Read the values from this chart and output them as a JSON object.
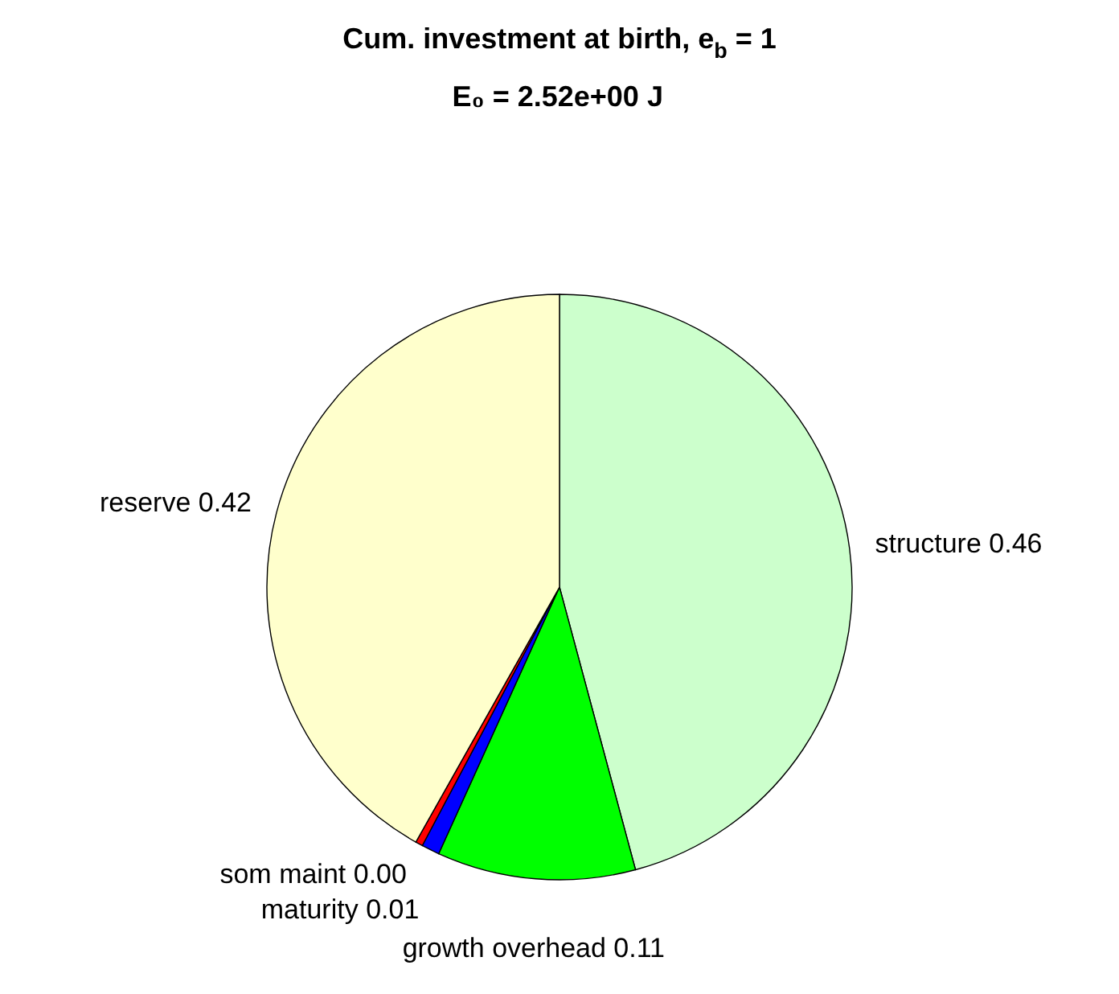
{
  "chart_data": {
    "type": "pie",
    "title": "Cum. investment at birth, e$_{b}$ = 1",
    "subtitle": "E₀ = 2.52e+00 J",
    "categories": [
      "structure",
      "growth overhead",
      "maturity",
      "som maint",
      "reserve"
    ],
    "values": [
      0.46,
      0.11,
      0.01,
      0.004,
      0.42
    ],
    "value_labels": [
      "0.46",
      "0.11",
      "0.01",
      "0.00",
      "0.42"
    ],
    "colors": [
      "#ccffcc",
      "#00ff00",
      "#0000ff",
      "#ff0000",
      "#ffffcc"
    ]
  }
}
